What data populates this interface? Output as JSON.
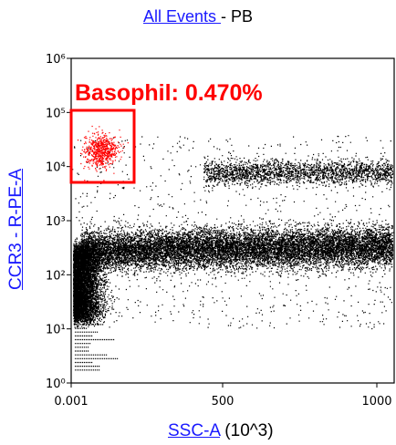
{
  "title": {
    "population": "All Events ",
    "suffix": " - PB"
  },
  "x_axis": {
    "param": "SSC-A",
    "unit": " (10^3)"
  },
  "y_axis": {
    "param": "CCR3 - R-PE-A"
  },
  "gate": {
    "label": "Basophil: 0.470%",
    "color": "#ff0000"
  },
  "colors": {
    "events": "#000000",
    "gated_events": "#ff0000"
  },
  "chart_data": {
    "type": "scatter",
    "title": "All Events - PB",
    "xlabel": "SSC-A (10^3)",
    "ylabel": "CCR3 - R-PE-A",
    "xlim": [
      0.001,
      1050
    ],
    "ylim": [
      1,
      1000000
    ],
    "yscale": "log",
    "xticks": [
      "0.001",
      "500",
      "1000"
    ],
    "yticks": [
      "10⁰",
      "10¹",
      "10²",
      "10³",
      "10⁴",
      "10⁵",
      "10⁶"
    ],
    "grid": false,
    "populations": [
      {
        "name": "main",
        "x_range": [
          10,
          1050
        ],
        "y_center": 300,
        "description": "dense band"
      },
      {
        "name": "low-ssc",
        "x_range": [
          0.001,
          60
        ],
        "y_range": [
          10,
          300
        ]
      },
      {
        "name": "high-ccr3",
        "x_range": [
          550,
          1050
        ],
        "y_center": 8000
      },
      {
        "name": "Basophil",
        "x_range": [
          30,
          130
        ],
        "y_center": 18000,
        "percent": 0.47,
        "gate_x": [
          0.001,
          210
        ],
        "gate_y": [
          5000,
          120000
        ]
      }
    ]
  }
}
